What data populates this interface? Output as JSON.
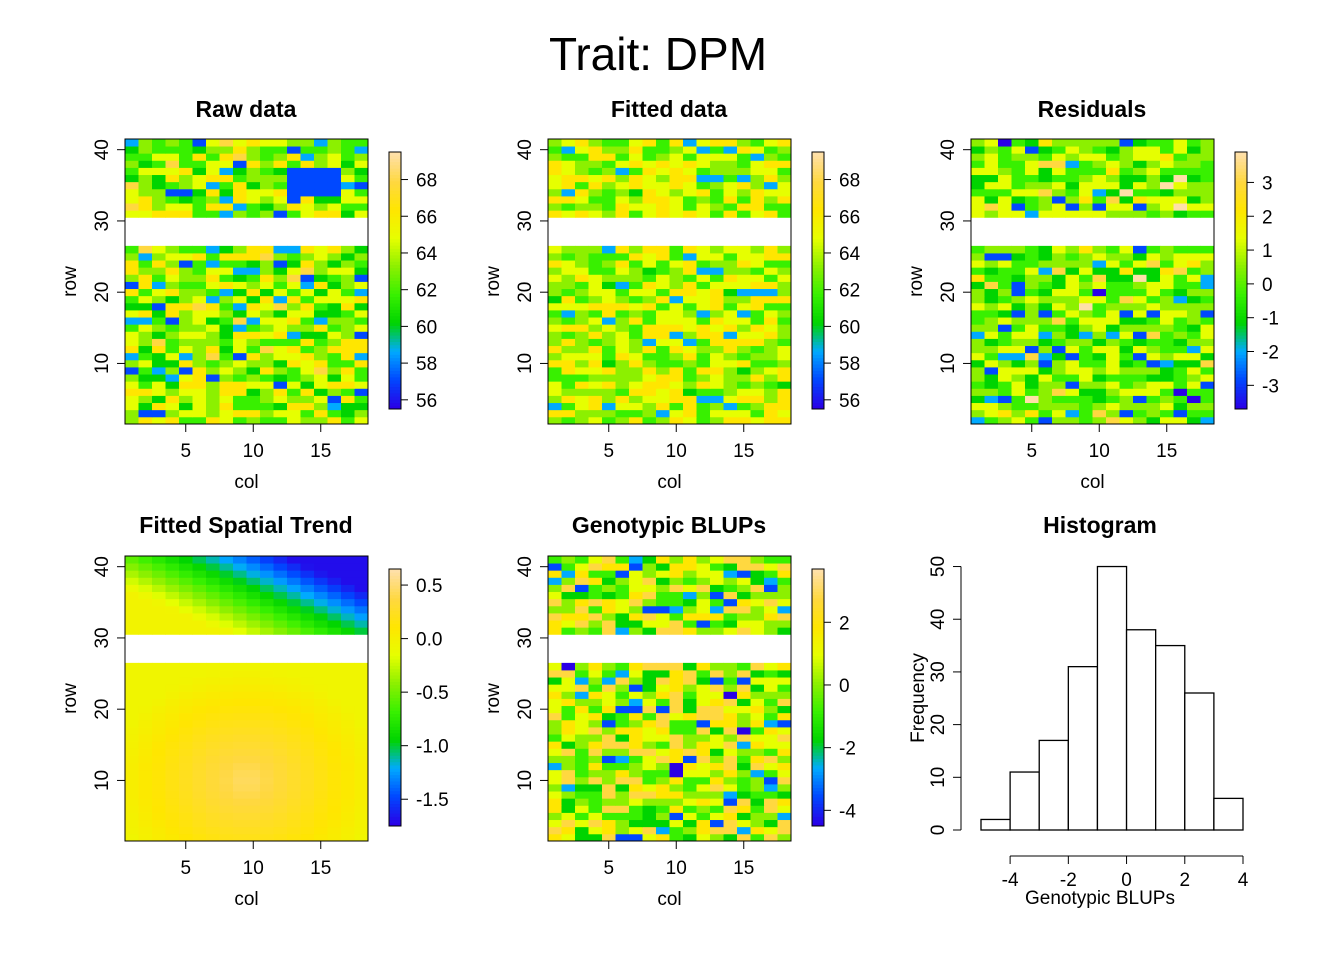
{
  "suptitle": "Trait: DPM",
  "palette": [
    "#2a00e6",
    "#0048ff",
    "#00aaff",
    "#00d400",
    "#38f000",
    "#8cf000",
    "#e6ff00",
    "#ffe600",
    "#ffd840",
    "#ffe0a8"
  ],
  "chart_data": [
    {
      "type": "heatmap",
      "title": "Raw data",
      "xlabel": "col",
      "ylabel": "row",
      "xlim": [
        0.5,
        18.5
      ],
      "ylim": [
        1.5,
        41.5
      ],
      "xticks": [
        5,
        10,
        15
      ],
      "yticks": [
        10,
        20,
        30,
        40
      ],
      "missing_rows": [
        27,
        30
      ],
      "colorbar": {
        "range": [
          55.5,
          69.5
        ],
        "ticks": [
          "56",
          "58",
          "60",
          "62",
          "64",
          "66",
          "68"
        ]
      },
      "value_range_estimate": [
        56,
        69
      ]
    },
    {
      "type": "heatmap",
      "title": "Fitted data",
      "xlabel": "col",
      "ylabel": "row",
      "xlim": [
        0.5,
        18.5
      ],
      "ylim": [
        1.5,
        41.5
      ],
      "xticks": [
        5,
        10,
        15
      ],
      "yticks": [
        10,
        20,
        30,
        40
      ],
      "missing_rows": [
        27,
        30
      ],
      "colorbar": {
        "range": [
          55.5,
          69.5
        ],
        "ticks": [
          "56",
          "58",
          "60",
          "62",
          "64",
          "66",
          "68"
        ]
      },
      "value_range_estimate": [
        56,
        69
      ]
    },
    {
      "type": "heatmap",
      "title": "Residuals",
      "xlabel": "col",
      "ylabel": "row",
      "xlim": [
        0.5,
        18.5
      ],
      "ylim": [
        1.5,
        41.5
      ],
      "xticks": [
        5,
        10,
        15
      ],
      "yticks": [
        10,
        20,
        30,
        40
      ],
      "missing_rows": [
        27,
        30
      ],
      "colorbar": {
        "range": [
          -3.7,
          3.9
        ],
        "ticks": [
          "-3",
          "-2",
          "-1",
          "0",
          "1",
          "2",
          "3"
        ]
      },
      "value_range_estimate": [
        -3.7,
        3.9
      ]
    },
    {
      "type": "heatmap",
      "title": "Fitted Spatial Trend",
      "xlabel": "col",
      "ylabel": "row",
      "xlim": [
        0.5,
        18.5
      ],
      "ylim": [
        1.5,
        41.5
      ],
      "xticks": [
        5,
        10,
        15
      ],
      "yticks": [
        10,
        20,
        30,
        40
      ],
      "missing_rows": [
        27,
        30
      ],
      "colorbar": {
        "range": [
          -1.75,
          0.65
        ],
        "ticks": [
          "0.5",
          "0.0",
          "-0.5",
          "-1.0",
          "-1.5"
        ]
      },
      "value_range_estimate": [
        -1.75,
        0.65
      ]
    },
    {
      "type": "heatmap",
      "title": "Genotypic BLUPs",
      "xlabel": "col",
      "ylabel": "row",
      "xlim": [
        0.5,
        18.5
      ],
      "ylim": [
        1.5,
        41.5
      ],
      "xticks": [
        5,
        10,
        15
      ],
      "yticks": [
        10,
        20,
        30,
        40
      ],
      "missing_rows": [
        27,
        30
      ],
      "colorbar": {
        "range": [
          -4.5,
          3.7
        ],
        "ticks": [
          "2",
          "0",
          "-2",
          "-4"
        ]
      },
      "value_range_estimate": [
        -4.5,
        3.7
      ]
    },
    {
      "type": "bar",
      "subtype": "histogram",
      "title": "Histogram",
      "xlabel": "Genotypic BLUPs",
      "ylabel": "Frequency",
      "bin_edges": [
        -5,
        -4,
        -3,
        -2,
        -1,
        0,
        1,
        2,
        3,
        4
      ],
      "values": [
        2,
        11,
        17,
        31,
        50,
        38,
        35,
        26,
        6
      ],
      "xlim": [
        -5,
        4
      ],
      "ylim": [
        0,
        52
      ],
      "xticks": [
        "-4",
        "-2",
        "0",
        "2",
        "4"
      ],
      "yticks": [
        "0",
        "10",
        "20",
        "30",
        "40",
        "50"
      ]
    }
  ]
}
